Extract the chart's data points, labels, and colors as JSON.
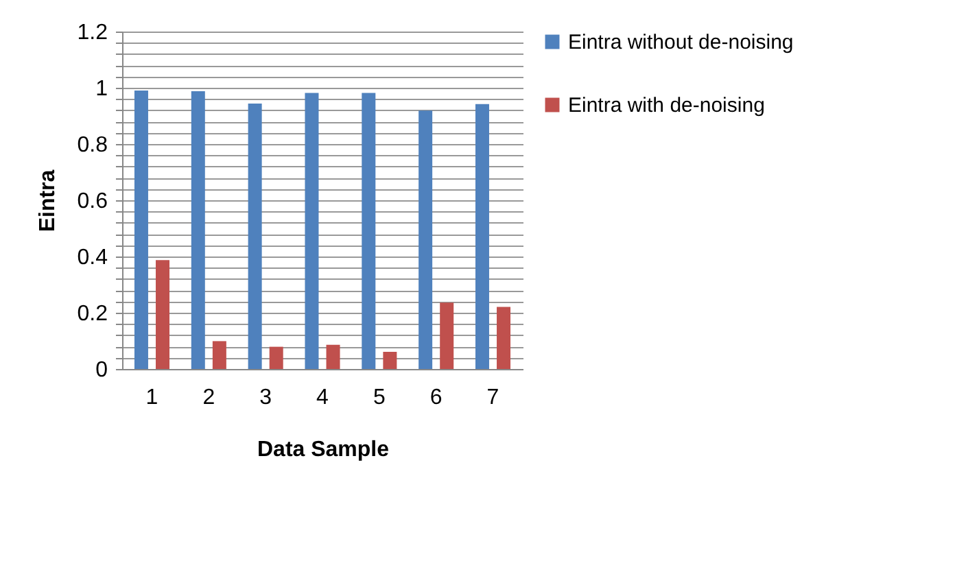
{
  "chart_data": {
    "type": "bar",
    "xlabel": "Data Sample",
    "ylabel": "Eintra",
    "categories": [
      "1",
      "2",
      "3",
      "4",
      "5",
      "6",
      "7"
    ],
    "series": [
      {
        "name": "Eintra without de-noising",
        "color": "#4f81bd",
        "values": [
          0.99,
          0.988,
          0.944,
          0.982,
          0.982,
          0.919,
          0.942
        ]
      },
      {
        "name": "Eintra with de-noising",
        "color": "#c0504d",
        "values": [
          0.387,
          0.099,
          0.079,
          0.086,
          0.061,
          0.236,
          0.221
        ]
      }
    ],
    "ylim": [
      0,
      1.2
    ],
    "yticks": [
      0,
      {
        "value": 0.04,
        "label": null
      },
      {
        "value": 0.08,
        "label": null
      },
      {
        "value": 0.12,
        "label": null
      },
      {
        "value": 0.16,
        "label": null
      },
      0.2,
      {
        "value": 0.24,
        "label": null
      },
      {
        "value": 0.28,
        "label": null
      },
      {
        "value": 0.32,
        "label": null
      },
      {
        "value": 0.36,
        "label": null
      },
      0.4,
      {
        "value": 0.44,
        "label": null
      },
      {
        "value": 0.48,
        "label": null
      },
      {
        "value": 0.52,
        "label": null
      },
      {
        "value": 0.56,
        "label": null
      },
      0.6,
      {
        "value": 0.64,
        "label": null
      },
      {
        "value": 0.68,
        "label": null
      },
      {
        "value": 0.72,
        "label": null
      },
      {
        "value": 0.76,
        "label": null
      },
      0.8,
      {
        "value": 0.84,
        "label": null
      },
      {
        "value": 0.88,
        "label": null
      },
      {
        "value": 0.92,
        "label": null
      },
      {
        "value": 0.96,
        "label": null
      },
      1,
      {
        "value": 1.04,
        "label": null
      },
      {
        "value": 1.08,
        "label": null
      },
      {
        "value": 1.12,
        "label": null
      },
      {
        "value": 1.16,
        "label": null
      },
      1.2
    ],
    "grid": true,
    "legend": "right"
  }
}
